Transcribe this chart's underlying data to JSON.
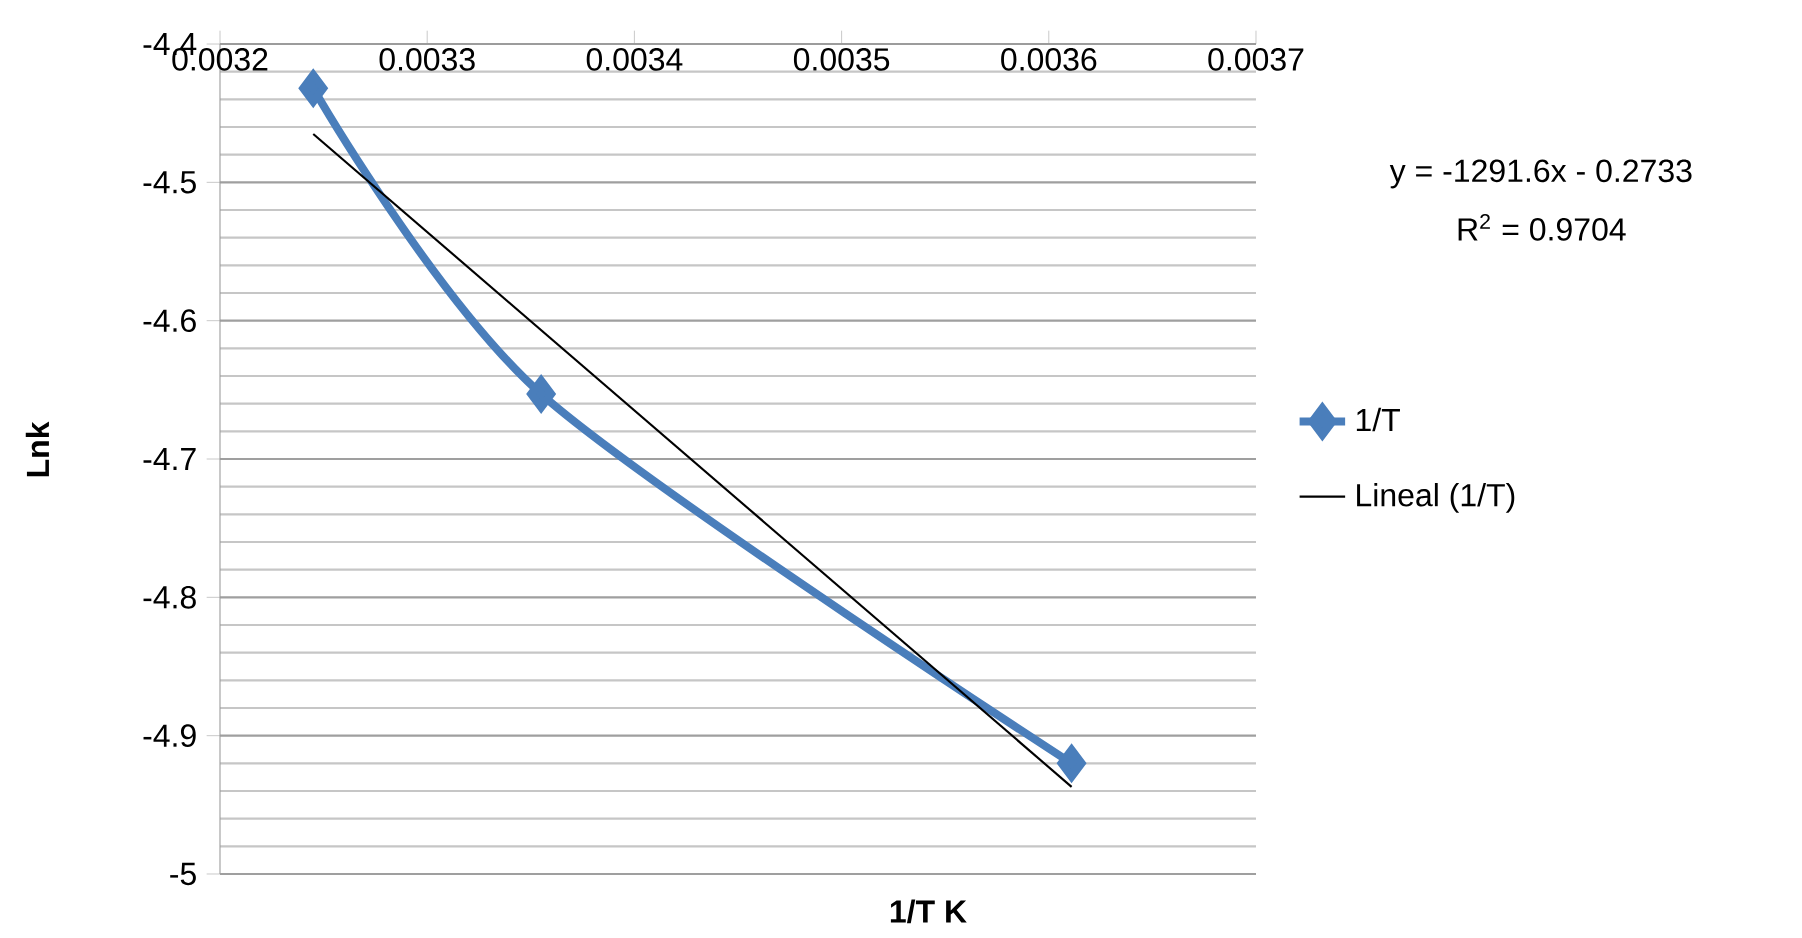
{
  "chart_data": {
    "type": "line",
    "xlabel": "1/T K",
    "ylabel": "Lnk",
    "xlim": [
      0.0032,
      0.0037
    ],
    "xticks": [
      0.0032,
      0.0033,
      0.0034,
      0.0035,
      0.0036,
      0.0037
    ],
    "ylim": [
      -5,
      -4.4
    ],
    "yticks": [
      -5,
      -4.9,
      -4.8,
      -4.7,
      -4.6,
      -4.5,
      -4.4
    ],
    "grid": "y",
    "legend": "right",
    "series": [
      {
        "name": "1/T",
        "color": "#4a7ebb",
        "marker": "diamond",
        "x": [
          0.003245,
          0.003355,
          0.003611
        ],
        "values": [
          -4.432,
          -4.653,
          -4.92
        ]
      },
      {
        "name": "Lineal (1/T)",
        "color": "#000000",
        "marker": "none",
        "x": [
          0.003245,
          0.003611
        ],
        "values": [
          -4.465,
          -4.937
        ]
      }
    ],
    "annotations": [
      "y = -1291.6x - 0.2733",
      "R$^{2}$ = 0.9704"
    ]
  }
}
